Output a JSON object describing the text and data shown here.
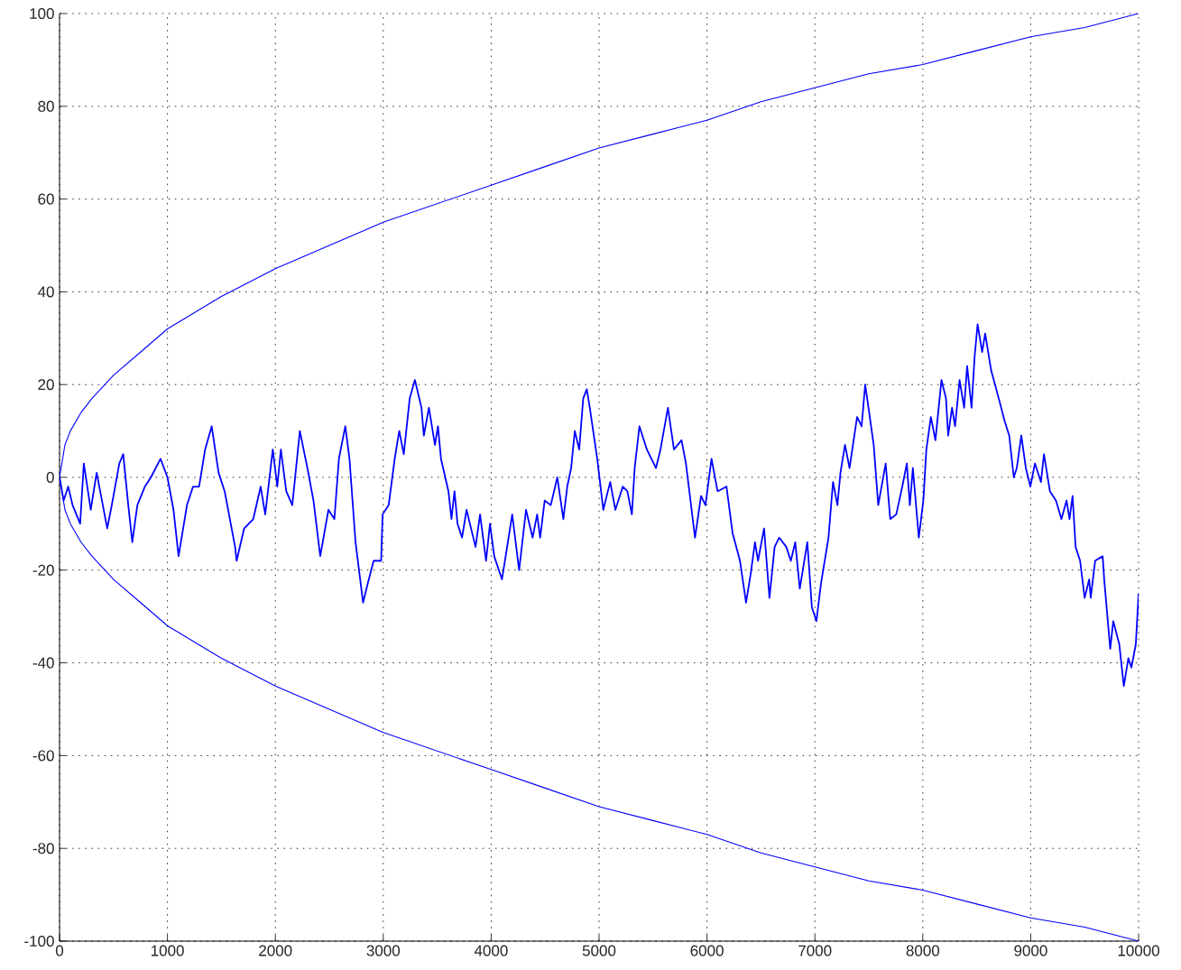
{
  "chart_data": {
    "type": "line",
    "xlim": [
      0,
      10000
    ],
    "ylim": [
      -100,
      100
    ],
    "xticks": [
      0,
      1000,
      2000,
      3000,
      4000,
      5000,
      6000,
      7000,
      8000,
      9000,
      10000
    ],
    "yticks": [
      -100,
      -80,
      -60,
      -40,
      -20,
      0,
      20,
      40,
      60,
      80,
      100
    ],
    "grid": true,
    "series": [
      {
        "color": "#0000ff",
        "x": [
          10000,
          9500,
          9000,
          8500,
          8000,
          7500,
          7000,
          6500,
          6000,
          5500,
          5000,
          4500,
          4000,
          3500,
          3000,
          2500,
          2000,
          1500,
          1000,
          750,
          500,
          300,
          200,
          100,
          50,
          0,
          50,
          100,
          200,
          300,
          500,
          750,
          1000,
          1500,
          2000,
          2500,
          3000,
          3500,
          4000,
          4500,
          5000,
          5500,
          6000,
          6500,
          7000,
          7500,
          8000,
          8500,
          9000,
          9500,
          10000
        ],
        "values": [
          -100,
          -97,
          -95,
          -92,
          -89,
          -87,
          -84,
          -81,
          -77,
          -74,
          -71,
          -67,
          -63,
          -59,
          -55,
          -50,
          -45,
          -39,
          -32,
          -27,
          -22,
          -17,
          -14,
          -10,
          -7,
          0,
          7,
          10,
          14,
          17,
          22,
          27,
          32,
          39,
          45,
          50,
          55,
          59,
          63,
          67,
          71,
          74,
          77,
          81,
          84,
          87,
          89,
          92,
          95,
          97,
          100
        ]
      },
      {
        "color": "#0000ff",
        "x": [
          0,
          38,
          80,
          121,
          191,
          225,
          289,
          344,
          442,
          484,
          554,
          590,
          637,
          674,
          721,
          791,
          847,
          936,
          1000,
          1056,
          1103,
          1181,
          1237,
          1293,
          1349,
          1410,
          1474,
          1530,
          1627,
          1641,
          1711,
          1795,
          1864,
          1906,
          1976,
          2018,
          2051,
          2101,
          2157,
          2227,
          2297,
          2353,
          2416,
          2492,
          2547,
          2589,
          2648,
          2687,
          2743,
          2813,
          2855,
          2911,
          2980,
          2994,
          3050,
          3106,
          3148,
          3190,
          3245,
          3293,
          3354,
          3376,
          3423,
          3479,
          3507,
          3535,
          3604,
          3632,
          3660,
          3688,
          3730,
          3772,
          3855,
          3897,
          3953,
          3989,
          4028,
          4100,
          4148,
          4195,
          4259,
          4323,
          4384,
          4426,
          4454,
          4496,
          4552,
          4613,
          4669,
          4705,
          4741,
          4775,
          4816,
          4853,
          4886,
          4914,
          4983,
          5039,
          5103,
          5151,
          5220,
          5262,
          5304,
          5330,
          5374,
          5443,
          5527,
          5569,
          5638,
          5694,
          5764,
          5805,
          5889,
          5945,
          5986,
          6042,
          6098,
          6181,
          6237,
          6306,
          6362,
          6404,
          6445,
          6473,
          6529,
          6579,
          6627,
          6669,
          6735,
          6777,
          6818,
          6860,
          6930,
          6972,
          7014,
          7056,
          7098,
          7126,
          7154,
          7168,
          7209,
          7237,
          7279,
          7321,
          7391,
          7433,
          7466,
          7503,
          7545,
          7587,
          7656,
          7698,
          7754,
          7810,
          7852,
          7880,
          7908,
          7963,
          8005,
          8033,
          8075,
          8117,
          8173,
          8215,
          8235,
          8271,
          8299,
          8341,
          8383,
          8411,
          8452,
          8480,
          8508,
          8550,
          8578,
          8634,
          8704,
          8760,
          8801,
          8843,
          8871,
          8913,
          8955,
          8997,
          9039,
          9095,
          9123,
          9178,
          9234,
          9285,
          9332,
          9360,
          9388,
          9416,
          9458,
          9500,
          9542,
          9556,
          9597,
          9667,
          9681,
          9737,
          9765,
          9821,
          9863,
          9905,
          9933,
          9974,
          10000
        ],
        "values": [
          0,
          -5,
          -2,
          -6,
          -10,
          3,
          -7,
          1,
          -11,
          -6,
          3,
          5,
          -6,
          -14,
          -6,
          -2,
          0,
          4,
          0,
          -7,
          -17,
          -6,
          -2,
          -2,
          6,
          11,
          1,
          -3,
          -15,
          -18,
          -11,
          -9,
          -2,
          -8,
          6,
          -2,
          6,
          -3,
          -6,
          10,
          2,
          -5,
          -17,
          -7,
          -9,
          4,
          11,
          4,
          -14,
          -27,
          -23,
          -18,
          -18,
          -8,
          -6,
          4,
          10,
          5,
          17,
          21,
          15,
          9,
          15,
          7,
          11,
          4,
          -3,
          -9,
          -3,
          -10,
          -13,
          -7,
          -15,
          -8,
          -18,
          -10,
          -17,
          -22,
          -15,
          -8,
          -20,
          -7,
          -13,
          -8,
          -13,
          -5,
          -6,
          0,
          -9,
          -2,
          2,
          10,
          6,
          17,
          19,
          15,
          4,
          -7,
          -1,
          -7,
          -2,
          -3,
          -8,
          2,
          11,
          6,
          2,
          6,
          15,
          6,
          8,
          3,
          -13,
          -4,
          -6,
          4,
          -3,
          -2,
          -12,
          -18,
          -27,
          -21,
          -14,
          -18,
          -11,
          -26,
          -15,
          -13,
          -15,
          -18,
          -14,
          -24,
          -14,
          -28,
          -31,
          -23,
          -17,
          -13,
          -5,
          -1,
          -6,
          1,
          7,
          2,
          13,
          11,
          20,
          14,
          7,
          -6,
          3,
          -9,
          -8,
          -2,
          3,
          -6,
          2,
          -13,
          -5,
          6,
          13,
          8,
          21,
          17,
          9,
          15,
          11,
          21,
          15,
          24,
          15,
          26,
          33,
          27,
          31,
          23,
          17,
          12,
          9,
          0,
          2,
          9,
          2,
          -2,
          3,
          -1,
          5,
          -3,
          -5,
          -9,
          -5,
          -9,
          -4,
          -15,
          -18,
          -26,
          -22,
          -26,
          -18,
          -17,
          -22,
          -37,
          -31,
          -36,
          -45,
          -39,
          -41,
          -36,
          -25
        ]
      }
    ]
  }
}
